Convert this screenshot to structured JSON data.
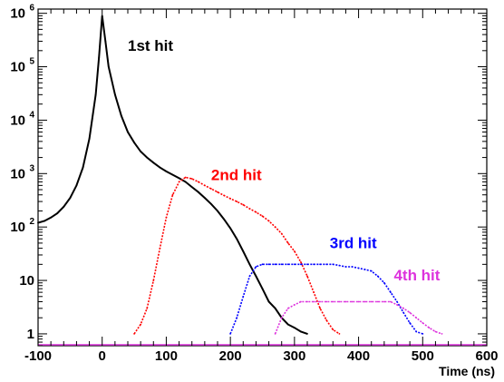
{
  "chart_data": {
    "type": "line",
    "title": "",
    "xlabel": "Time (ns)",
    "ylabel": "",
    "xlim": [
      -100,
      600
    ],
    "ylim": [
      0.6,
      1200000
    ],
    "yscale": "log",
    "grid": false,
    "legend": "none",
    "x_ticks": [
      {
        "value": -100,
        "label": "-100"
      },
      {
        "value": 0,
        "label": "0"
      },
      {
        "value": 100,
        "label": "100"
      },
      {
        "value": 200,
        "label": "200"
      },
      {
        "value": 300,
        "label": "300"
      },
      {
        "value": 400,
        "label": "400"
      },
      {
        "value": 500,
        "label": "500"
      },
      {
        "value": 600,
        "label": "600"
      }
    ],
    "y_ticks": [
      {
        "value": 1,
        "base": "1",
        "exp": ""
      },
      {
        "value": 10,
        "base": "10",
        "exp": ""
      },
      {
        "value": 100,
        "base": "10",
        "exp": "2"
      },
      {
        "value": 1000,
        "base": "10",
        "exp": "3"
      },
      {
        "value": 10000,
        "base": "10",
        "exp": "4"
      },
      {
        "value": 100000,
        "base": "10",
        "exp": "5"
      },
      {
        "value": 1000000,
        "base": "10",
        "exp": "6"
      }
    ],
    "series": [
      {
        "name": "1st hit",
        "color": "#000000",
        "style": "solid",
        "label_at": [
          40,
          200000
        ],
        "points": [
          [
            -100,
            120
          ],
          [
            -90,
            130
          ],
          [
            -80,
            150
          ],
          [
            -70,
            180
          ],
          [
            -60,
            240
          ],
          [
            -50,
            350
          ],
          [
            -40,
            600
          ],
          [
            -30,
            1300
          ],
          [
            -20,
            4500
          ],
          [
            -10,
            30000
          ],
          [
            -5,
            150000
          ],
          [
            0,
            900000
          ],
          [
            5,
            300000
          ],
          [
            10,
            100000
          ],
          [
            20,
            30000
          ],
          [
            30,
            12000
          ],
          [
            40,
            6000
          ],
          [
            50,
            3800
          ],
          [
            60,
            2600
          ],
          [
            70,
            2000
          ],
          [
            80,
            1600
          ],
          [
            90,
            1300
          ],
          [
            100,
            1100
          ],
          [
            110,
            950
          ],
          [
            120,
            820
          ],
          [
            130,
            700
          ],
          [
            140,
            560
          ],
          [
            150,
            450
          ],
          [
            160,
            350
          ],
          [
            170,
            270
          ],
          [
            180,
            200
          ],
          [
            190,
            140
          ],
          [
            200,
            95
          ],
          [
            210,
            60
          ],
          [
            220,
            35
          ],
          [
            230,
            20
          ],
          [
            240,
            12
          ],
          [
            250,
            7
          ],
          [
            260,
            4
          ],
          [
            270,
            3
          ],
          [
            280,
            2
          ],
          [
            290,
            1.5
          ],
          [
            300,
            1.3
          ],
          [
            310,
            1.1
          ],
          [
            320,
            1
          ]
        ]
      },
      {
        "name": "2nd hit",
        "color": "#ff0000",
        "style": "dotted",
        "label_at": [
          170,
          750
        ],
        "points": [
          [
            50,
            1
          ],
          [
            60,
            1.5
          ],
          [
            70,
            3
          ],
          [
            80,
            10
          ],
          [
            90,
            40
          ],
          [
            100,
            150
          ],
          [
            110,
            400
          ],
          [
            120,
            700
          ],
          [
            130,
            850
          ],
          [
            140,
            800
          ],
          [
            150,
            700
          ],
          [
            160,
            600
          ],
          [
            170,
            520
          ],
          [
            180,
            450
          ],
          [
            190,
            390
          ],
          [
            200,
            340
          ],
          [
            210,
            300
          ],
          [
            220,
            260
          ],
          [
            230,
            220
          ],
          [
            240,
            190
          ],
          [
            250,
            160
          ],
          [
            260,
            130
          ],
          [
            270,
            100
          ],
          [
            280,
            75
          ],
          [
            290,
            50
          ],
          [
            300,
            35
          ],
          [
            310,
            22
          ],
          [
            320,
            12
          ],
          [
            330,
            6
          ],
          [
            340,
            3
          ],
          [
            350,
            1.8
          ],
          [
            360,
            1.2
          ],
          [
            370,
            1
          ]
        ]
      },
      {
        "name": "3rd hit",
        "color": "#0000ff",
        "style": "dotted",
        "label_at": [
          355,
          40
        ],
        "points": [
          [
            200,
            1
          ],
          [
            210,
            2
          ],
          [
            220,
            5
          ],
          [
            230,
            12
          ],
          [
            240,
            18
          ],
          [
            250,
            20
          ],
          [
            260,
            20
          ],
          [
            270,
            20
          ],
          [
            280,
            20
          ],
          [
            290,
            20
          ],
          [
            300,
            20
          ],
          [
            310,
            20
          ],
          [
            320,
            20
          ],
          [
            330,
            20
          ],
          [
            340,
            20
          ],
          [
            350,
            20
          ],
          [
            360,
            20
          ],
          [
            370,
            19
          ],
          [
            380,
            18
          ],
          [
            390,
            18
          ],
          [
            400,
            17
          ],
          [
            410,
            16
          ],
          [
            420,
            15
          ],
          [
            430,
            12
          ],
          [
            440,
            9
          ],
          [
            450,
            6
          ],
          [
            460,
            4
          ],
          [
            470,
            2.5
          ],
          [
            480,
            1.6
          ],
          [
            490,
            1.1
          ],
          [
            500,
            1
          ]
        ]
      },
      {
        "name": "4th hit",
        "color": "#dd33dd",
        "style": "dotted",
        "label_at": [
          455,
          10
        ],
        "points": [
          [
            270,
            1
          ],
          [
            280,
            2
          ],
          [
            290,
            3
          ],
          [
            300,
            3.5
          ],
          [
            310,
            4
          ],
          [
            320,
            4
          ],
          [
            330,
            4
          ],
          [
            340,
            4
          ],
          [
            350,
            4
          ],
          [
            360,
            4
          ],
          [
            370,
            4
          ],
          [
            380,
            4
          ],
          [
            390,
            4
          ],
          [
            400,
            4
          ],
          [
            410,
            4
          ],
          [
            420,
            4
          ],
          [
            430,
            4
          ],
          [
            440,
            4
          ],
          [
            450,
            4
          ],
          [
            460,
            3.5
          ],
          [
            470,
            3
          ],
          [
            480,
            2.5
          ],
          [
            490,
            2
          ],
          [
            500,
            1.6
          ],
          [
            510,
            1.3
          ],
          [
            520,
            1.1
          ],
          [
            530,
            1
          ]
        ]
      }
    ]
  }
}
